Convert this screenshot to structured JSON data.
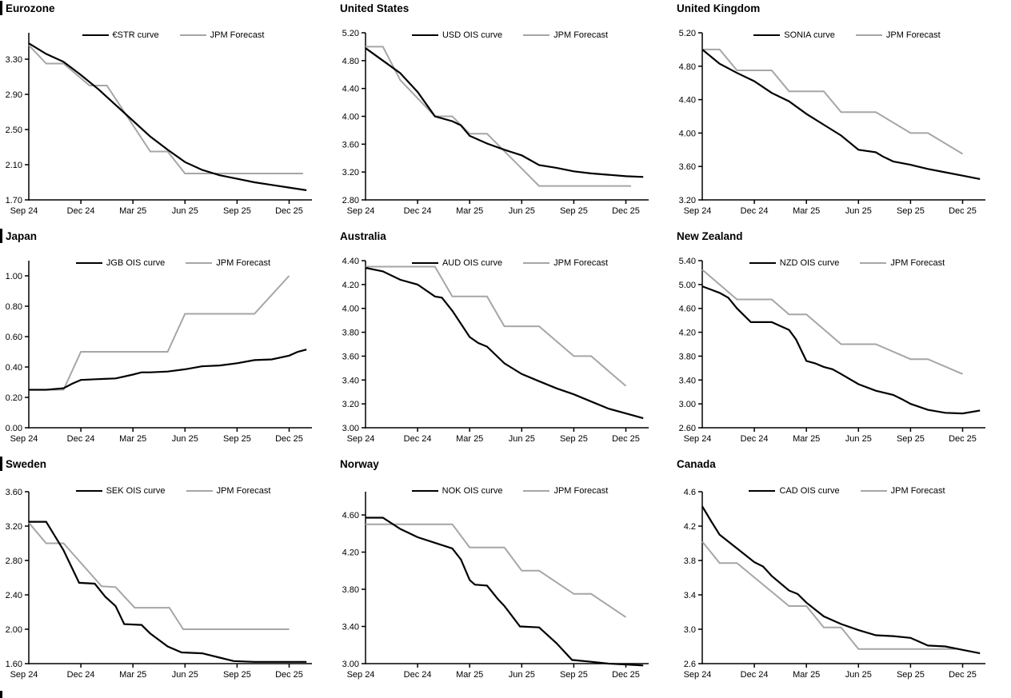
{
  "colors": {
    "ois_line": "#000000",
    "forecast_line": "#a6a6a6",
    "axis": "#000000",
    "text": "#000000"
  },
  "x_axis": {
    "tick_labels": [
      "Sep 24",
      "Dec 24",
      "Mar 25",
      "Jun 25",
      "Sep 25",
      "Dec 25"
    ],
    "tick_months": [
      0,
      3,
      6,
      9,
      12,
      15
    ],
    "domain": [
      0,
      16.3
    ]
  },
  "chart_data": [
    {
      "type": "line",
      "title": "Eurozone",
      "ois_label": "€STR curve",
      "forecast_label": "JPM Forecast",
      "y_ticks": [
        "1.70",
        "2.10",
        "2.50",
        "2.90",
        "3.30"
      ],
      "y_domain": [
        1.7,
        3.6
      ],
      "ois_points": [
        [
          0,
          3.48
        ],
        [
          1,
          3.36
        ],
        [
          2,
          3.27
        ],
        [
          3,
          3.12
        ],
        [
          4,
          2.96
        ],
        [
          5,
          2.78
        ],
        [
          6,
          2.6
        ],
        [
          7,
          2.42
        ],
        [
          8,
          2.27
        ],
        [
          9,
          2.13
        ],
        [
          10,
          2.04
        ],
        [
          11,
          1.98
        ],
        [
          12,
          1.94
        ],
        [
          13,
          1.9
        ],
        [
          14,
          1.87
        ],
        [
          15,
          1.84
        ],
        [
          16,
          1.81
        ]
      ],
      "forecast_points": [
        [
          0,
          3.46
        ],
        [
          1,
          3.25
        ],
        [
          2,
          3.25
        ],
        [
          3.5,
          3.0
        ],
        [
          4.5,
          3.0
        ],
        [
          7,
          2.25
        ],
        [
          8,
          2.25
        ],
        [
          9,
          2.0
        ],
        [
          15.8,
          2.0
        ]
      ]
    },
    {
      "type": "line",
      "title": "United States",
      "ois_label": "USD OIS curve",
      "forecast_label": "JPM Forecast",
      "y_ticks": [
        "2.80",
        "3.20",
        "3.60",
        "4.00",
        "4.40",
        "4.80",
        "5.20"
      ],
      "y_domain": [
        2.8,
        5.2
      ],
      "ois_points": [
        [
          0,
          4.98
        ],
        [
          1,
          4.8
        ],
        [
          2,
          4.62
        ],
        [
          3,
          4.35
        ],
        [
          4,
          4.0
        ],
        [
          5,
          3.93
        ],
        [
          5.5,
          3.87
        ],
        [
          6,
          3.72
        ],
        [
          7,
          3.61
        ],
        [
          8,
          3.52
        ],
        [
          9,
          3.44
        ],
        [
          10,
          3.3
        ],
        [
          11,
          3.26
        ],
        [
          12,
          3.21
        ],
        [
          13,
          3.18
        ],
        [
          14,
          3.16
        ],
        [
          15,
          3.14
        ],
        [
          16,
          3.13
        ]
      ],
      "forecast_points": [
        [
          0,
          5.0
        ],
        [
          1,
          5.0
        ],
        [
          2,
          4.52
        ],
        [
          4,
          4.0
        ],
        [
          5,
          4.0
        ],
        [
          6,
          3.75
        ],
        [
          7,
          3.75
        ],
        [
          10,
          3.0
        ],
        [
          15.3,
          3.0
        ]
      ]
    },
    {
      "type": "line",
      "title": "United Kingdom",
      "ois_label": "SONIA curve",
      "forecast_label": "JPM Forecast",
      "y_ticks": [
        "3.20",
        "3.60",
        "4.00",
        "4.40",
        "4.80",
        "5.20"
      ],
      "y_domain": [
        3.2,
        5.2
      ],
      "ois_points": [
        [
          0,
          5.0
        ],
        [
          1,
          4.83
        ],
        [
          2,
          4.72
        ],
        [
          3,
          4.62
        ],
        [
          4,
          4.48
        ],
        [
          5,
          4.38
        ],
        [
          6,
          4.23
        ],
        [
          7,
          4.1
        ],
        [
          8,
          3.97
        ],
        [
          9,
          3.8
        ],
        [
          10,
          3.77
        ],
        [
          10.4,
          3.72
        ],
        [
          11,
          3.66
        ],
        [
          12,
          3.62
        ],
        [
          13,
          3.57
        ],
        [
          14,
          3.53
        ],
        [
          15,
          3.49
        ],
        [
          16,
          3.45
        ]
      ],
      "forecast_points": [
        [
          0,
          5.0
        ],
        [
          1,
          5.0
        ],
        [
          2,
          4.75
        ],
        [
          4,
          4.75
        ],
        [
          5,
          4.5
        ],
        [
          7,
          4.5
        ],
        [
          8,
          4.25
        ],
        [
          10,
          4.25
        ],
        [
          12,
          4.0
        ],
        [
          13,
          4.0
        ],
        [
          15,
          3.75
        ]
      ]
    },
    {
      "type": "line",
      "title": "Japan",
      "ois_label": "JGB OIS curve",
      "forecast_label": "JPM Forecast",
      "y_ticks": [
        "0.00",
        "0.20",
        "0.40",
        "0.60",
        "0.80",
        "1.00"
      ],
      "y_domain": [
        0.0,
        1.1
      ],
      "ois_points": [
        [
          0,
          0.25
        ],
        [
          1,
          0.25
        ],
        [
          2,
          0.26
        ],
        [
          2.5,
          0.29
        ],
        [
          3,
          0.315
        ],
        [
          4,
          0.32
        ],
        [
          5,
          0.325
        ],
        [
          6,
          0.35
        ],
        [
          6.5,
          0.365
        ],
        [
          7,
          0.365
        ],
        [
          8,
          0.37
        ],
        [
          9,
          0.385
        ],
        [
          10,
          0.405
        ],
        [
          11,
          0.41
        ],
        [
          12,
          0.425
        ],
        [
          13,
          0.445
        ],
        [
          14,
          0.45
        ],
        [
          15,
          0.475
        ],
        [
          15.5,
          0.5
        ],
        [
          16,
          0.515
        ]
      ],
      "forecast_points": [
        [
          0,
          0.25
        ],
        [
          2,
          0.25
        ],
        [
          3,
          0.5
        ],
        [
          8,
          0.5
        ],
        [
          9,
          0.75
        ],
        [
          13,
          0.75
        ],
        [
          15,
          1.0
        ]
      ]
    },
    {
      "type": "line",
      "title": "Australia",
      "ois_label": "AUD OIS curve",
      "forecast_label": "JPM Forecast",
      "y_ticks": [
        "3.00",
        "3.20",
        "3.40",
        "3.60",
        "3.80",
        "4.00",
        "4.20",
        "4.40"
      ],
      "y_domain": [
        3.0,
        4.4
      ],
      "ois_points": [
        [
          0,
          4.34
        ],
        [
          1,
          4.31
        ],
        [
          2,
          4.24
        ],
        [
          3,
          4.2
        ],
        [
          4,
          4.1
        ],
        [
          4.4,
          4.09
        ],
        [
          5,
          3.98
        ],
        [
          6,
          3.76
        ],
        [
          6.5,
          3.71
        ],
        [
          7,
          3.68
        ],
        [
          8,
          3.54
        ],
        [
          9,
          3.45
        ],
        [
          10,
          3.39
        ],
        [
          11,
          3.33
        ],
        [
          12,
          3.28
        ],
        [
          13,
          3.22
        ],
        [
          14,
          3.16
        ],
        [
          15,
          3.12
        ],
        [
          16,
          3.08
        ]
      ],
      "forecast_points": [
        [
          0,
          4.35
        ],
        [
          4,
          4.35
        ],
        [
          5,
          4.1
        ],
        [
          7,
          4.1
        ],
        [
          8,
          3.85
        ],
        [
          10,
          3.85
        ],
        [
          12,
          3.6
        ],
        [
          13,
          3.6
        ],
        [
          15,
          3.35
        ]
      ]
    },
    {
      "type": "line",
      "title": "New Zealand",
      "ois_label": "NZD OIS curve",
      "forecast_label": "JPM Forecast",
      "y_ticks": [
        "2.60",
        "3.00",
        "3.40",
        "3.80",
        "4.20",
        "4.60",
        "5.00",
        "5.40"
      ],
      "y_domain": [
        2.6,
        5.4
      ],
      "ois_points": [
        [
          0,
          4.97
        ],
        [
          1,
          4.86
        ],
        [
          1.5,
          4.78
        ],
        [
          2,
          4.6
        ],
        [
          2.8,
          4.37
        ],
        [
          4,
          4.37
        ],
        [
          5,
          4.24
        ],
        [
          5.4,
          4.08
        ],
        [
          6,
          3.72
        ],
        [
          6.5,
          3.68
        ],
        [
          7,
          3.62
        ],
        [
          7.5,
          3.58
        ],
        [
          8,
          3.5
        ],
        [
          9,
          3.33
        ],
        [
          10,
          3.22
        ],
        [
          11,
          3.15
        ],
        [
          11.5,
          3.08
        ],
        [
          12,
          3.0
        ],
        [
          13,
          2.9
        ],
        [
          14,
          2.85
        ],
        [
          15,
          2.84
        ],
        [
          16,
          2.89
        ]
      ],
      "forecast_points": [
        [
          0,
          5.25
        ],
        [
          2,
          4.75
        ],
        [
          4,
          4.75
        ],
        [
          5,
          4.5
        ],
        [
          6,
          4.5
        ],
        [
          8,
          4.0
        ],
        [
          10,
          4.0
        ],
        [
          12,
          3.75
        ],
        [
          13,
          3.75
        ],
        [
          15,
          3.5
        ]
      ]
    },
    {
      "type": "line",
      "title": "Sweden",
      "ois_label": "SEK OIS curve",
      "forecast_label": "JPM Forecast",
      "y_ticks": [
        "1.60",
        "2.00",
        "2.40",
        "2.80",
        "3.20",
        "3.60"
      ],
      "y_domain": [
        1.6,
        3.6
      ],
      "ois_points": [
        [
          0,
          3.25
        ],
        [
          1,
          3.25
        ],
        [
          2,
          2.92
        ],
        [
          2.9,
          2.54
        ],
        [
          3.8,
          2.53
        ],
        [
          4.4,
          2.38
        ],
        [
          5,
          2.27
        ],
        [
          5.5,
          2.06
        ],
        [
          6.5,
          2.05
        ],
        [
          7,
          1.95
        ],
        [
          8,
          1.8
        ],
        [
          8.8,
          1.73
        ],
        [
          10,
          1.72
        ],
        [
          11,
          1.67
        ],
        [
          11.8,
          1.63
        ],
        [
          13,
          1.62
        ],
        [
          16,
          1.62
        ]
      ],
      "forecast_points": [
        [
          0,
          3.24
        ],
        [
          1,
          3.0
        ],
        [
          2,
          3.0
        ],
        [
          4.2,
          2.5
        ],
        [
          5,
          2.49
        ],
        [
          6.1,
          2.25
        ],
        [
          8.1,
          2.25
        ],
        [
          8.9,
          2.0
        ],
        [
          15,
          2.0
        ]
      ]
    },
    {
      "type": "line",
      "title": "Norway",
      "ois_label": "NOK OIS curve",
      "forecast_label": "JPM Forecast",
      "y_ticks": [
        "3.00",
        "3.40",
        "3.80",
        "4.20",
        "4.60"
      ],
      "y_domain": [
        3.0,
        4.85
      ],
      "ois_points": [
        [
          0,
          4.57
        ],
        [
          1,
          4.57
        ],
        [
          2,
          4.45
        ],
        [
          3,
          4.36
        ],
        [
          4,
          4.3
        ],
        [
          5,
          4.24
        ],
        [
          5.5,
          4.12
        ],
        [
          6,
          3.9
        ],
        [
          6.3,
          3.85
        ],
        [
          7,
          3.84
        ],
        [
          7.6,
          3.7
        ],
        [
          8,
          3.62
        ],
        [
          8.9,
          3.4
        ],
        [
          10,
          3.39
        ],
        [
          11,
          3.22
        ],
        [
          11.9,
          3.04
        ],
        [
          13,
          3.02
        ],
        [
          14,
          3.0
        ],
        [
          16,
          2.98
        ]
      ],
      "forecast_points": [
        [
          0,
          4.5
        ],
        [
          5,
          4.5
        ],
        [
          6,
          4.25
        ],
        [
          8,
          4.25
        ],
        [
          9,
          4.0
        ],
        [
          10,
          4.0
        ],
        [
          12,
          3.75
        ],
        [
          13,
          3.75
        ],
        [
          15,
          3.5
        ]
      ]
    },
    {
      "type": "line",
      "title": "Canada",
      "ois_label": "CAD OIS curve",
      "forecast_label": "JPM Forecast",
      "y_ticks": [
        "2.6",
        "3.0",
        "3.4",
        "3.8",
        "4.2",
        "4.6"
      ],
      "y_domain": [
        2.6,
        4.6
      ],
      "ois_points": [
        [
          0,
          4.43
        ],
        [
          0.5,
          4.26
        ],
        [
          1,
          4.1
        ],
        [
          2,
          3.94
        ],
        [
          3,
          3.78
        ],
        [
          3.5,
          3.73
        ],
        [
          4,
          3.62
        ],
        [
          5,
          3.45
        ],
        [
          5.5,
          3.41
        ],
        [
          6,
          3.31
        ],
        [
          7,
          3.15
        ],
        [
          8,
          3.06
        ],
        [
          9,
          2.99
        ],
        [
          10,
          2.93
        ],
        [
          11,
          2.92
        ],
        [
          12,
          2.9
        ],
        [
          13,
          2.81
        ],
        [
          14,
          2.8
        ],
        [
          15,
          2.76
        ],
        [
          16,
          2.72
        ]
      ],
      "forecast_points": [
        [
          0,
          4.02
        ],
        [
          1,
          3.77
        ],
        [
          2,
          3.77
        ],
        [
          5,
          3.27
        ],
        [
          6,
          3.27
        ],
        [
          7,
          3.02
        ],
        [
          8,
          3.02
        ],
        [
          9,
          2.77
        ],
        [
          14.6,
          2.77
        ]
      ]
    }
  ]
}
